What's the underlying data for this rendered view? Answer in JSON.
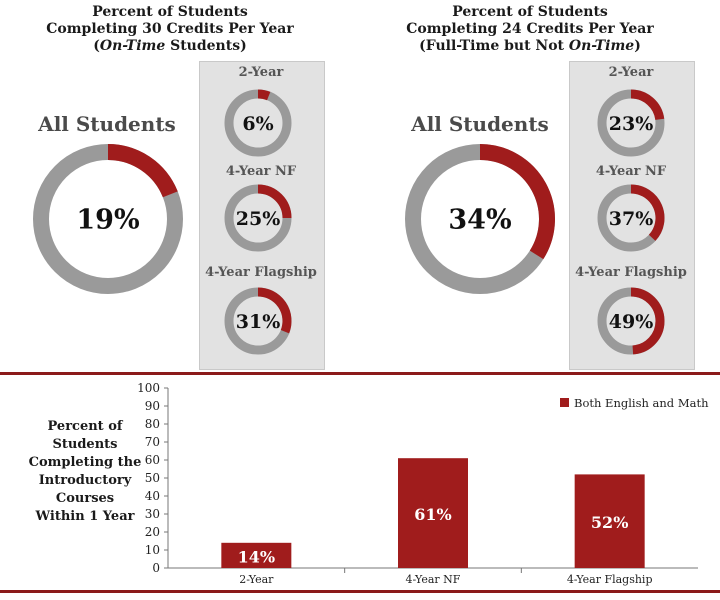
{
  "headers": {
    "left": {
      "line1": "Percent of Students",
      "line2": "Completing 30 Credits Per Year",
      "line3_pre": "(",
      "line3_em": "On-Time",
      "line3_post": " Students)"
    },
    "right": {
      "line1": "Percent of Students",
      "line2": "Completing 24 Credits Per Year",
      "line3_pre": "(Full-Time but Not ",
      "line3_em": "On-Time",
      "line3_post": ")"
    }
  },
  "side_title": [
    "Percent of",
    "Students",
    "Completing the",
    "Introductory",
    "Courses",
    "Within 1 Year"
  ],
  "colors": {
    "accent": "#a01c1c",
    "ring_bg": "#9a9a9a",
    "panel": "#e2e2e2"
  },
  "chart_data": [
    {
      "type": "pie",
      "title": "Percent of Students Completing 30 Credits Per Year (On-Time Students)",
      "donuts": [
        {
          "label": "All Students",
          "value": 19,
          "text": "19%"
        },
        {
          "label": "2-Year",
          "value": 6,
          "text": "6%"
        },
        {
          "label": "4-Year NF",
          "value": 25,
          "text": "25%"
        },
        {
          "label": "4-Year Flagship",
          "value": 31,
          "text": "31%"
        }
      ]
    },
    {
      "type": "pie",
      "title": "Percent of Students Completing 24 Credits Per Year (Full-Time but Not On-Time)",
      "donuts": [
        {
          "label": "All Students",
          "value": 34,
          "text": "34%"
        },
        {
          "label": "2-Year",
          "value": 23,
          "text": "23%"
        },
        {
          "label": "4-Year NF",
          "value": 37,
          "text": "37%"
        },
        {
          "label": "4-Year Flagship",
          "value": 49,
          "text": "49%"
        }
      ]
    },
    {
      "type": "bar",
      "categories": [
        "2-Year",
        "4-Year NF",
        "4-Year Flagship"
      ],
      "series": [
        {
          "name": "Both English and Math",
          "values": [
            14,
            61,
            52
          ],
          "labels": [
            "14%",
            "61%",
            "52%"
          ]
        }
      ],
      "ylim": [
        0,
        100
      ],
      "yticks": [
        0,
        10,
        20,
        30,
        40,
        50,
        60,
        70,
        80,
        90,
        100
      ],
      "legend": "top-right",
      "grid": false
    }
  ]
}
